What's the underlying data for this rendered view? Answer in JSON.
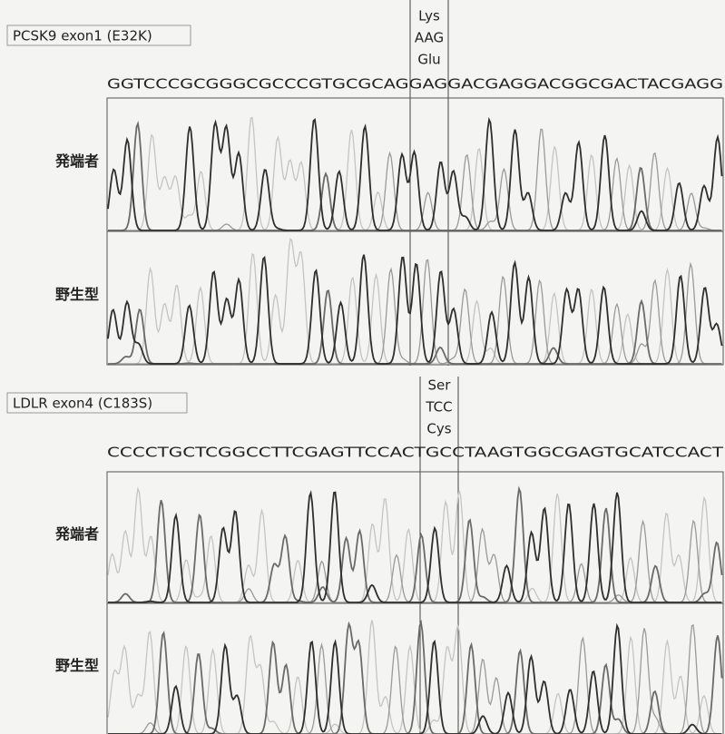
{
  "panels": [
    {
      "label": "PCSK9 exon1 (E32K)",
      "codon": {
        "mutant": "Lys",
        "codon": "AAG",
        "wild": "Glu"
      },
      "sequence": "GGTCCCGCGGGCGCCCGTGCGCAGGAGGACGAGGACGGCGACTACGAGG",
      "tracks": [
        "発端者",
        "野生型"
      ]
    },
    {
      "label": "LDLR exon4 (C183S)",
      "codon": {
        "mutant": "Ser",
        "codon": "TCC",
        "wild": "Cys"
      },
      "sequence": "CCCCTGCTCGGCCTTCGAGTTCCACTGCCTAAGTGGCGAGTGCATCCACT",
      "tracks": [
        "発端者",
        "野生型"
      ]
    }
  ]
}
